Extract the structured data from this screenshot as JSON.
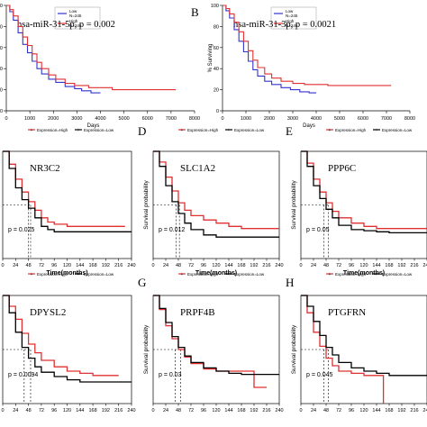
{
  "chart_data": [
    {
      "panel": "A",
      "type": "line",
      "kind": "km_top",
      "panel_letter": "",
      "gene": "hsa-miR-31-5p",
      "p_text": "p = 0.002",
      "xlabel": "Days",
      "ylabel": "",
      "xticks": [
        "0",
        "1000",
        "2000",
        "3000",
        "4000",
        "5000",
        "6000",
        "7000",
        "8000"
      ],
      "yticks": [
        "0",
        "20",
        "40",
        "60",
        "80",
        "100"
      ],
      "xlim": [
        0,
        8000
      ],
      "ylim": [
        0,
        100
      ],
      "legend": [
        {
          "name": "Low",
          "count": "N=245",
          "color": "#3333cc"
        },
        {
          "name": "High",
          "count": "N=245",
          "color": "#e03030"
        }
      ],
      "series": [
        {
          "name": "Low",
          "color": "#3333cc",
          "x": [
            0,
            150,
            300,
            500,
            700,
            900,
            1100,
            1300,
            1500,
            1800,
            2100,
            2500,
            2900,
            3200,
            3600,
            4000
          ],
          "y": [
            100,
            94,
            86,
            74,
            63,
            55,
            47,
            40,
            35,
            30,
            27,
            23,
            21,
            19,
            17,
            17
          ]
        },
        {
          "name": "High",
          "color": "#e03030",
          "x": [
            0,
            150,
            300,
            500,
            700,
            900,
            1100,
            1300,
            1500,
            1800,
            2100,
            2500,
            2900,
            3500,
            4500,
            5500,
            7200
          ],
          "y": [
            100,
            96,
            90,
            80,
            70,
            62,
            54,
            46,
            40,
            34,
            30,
            26,
            24,
            22,
            20,
            20,
            20
          ]
        }
      ]
    },
    {
      "panel": "B",
      "type": "line",
      "kind": "km_top",
      "panel_letter": "B",
      "gene": "hsa-miR-31-3p",
      "p_text": "p = 0.0021",
      "xlabel": "Days",
      "ylabel": "% Surviving",
      "xticks": [
        "0",
        "1000",
        "2000",
        "3000",
        "4000",
        "5000",
        "6000",
        "7000",
        "8000"
      ],
      "yticks": [
        "0",
        "20",
        "40",
        "60",
        "80",
        "100"
      ],
      "xlim": [
        0,
        8000
      ],
      "ylim": [
        0,
        100
      ],
      "legend": [
        {
          "name": "Low",
          "count": "N=245",
          "color": "#3333cc"
        },
        {
          "name": "High",
          "count": "N=245",
          "color": "#e03030"
        }
      ],
      "series": [
        {
          "name": "Low",
          "color": "#3333cc",
          "x": [
            0,
            150,
            300,
            500,
            700,
            900,
            1100,
            1300,
            1500,
            1800,
            2100,
            2500,
            2900,
            3300,
            3700,
            4000
          ],
          "y": [
            100,
            95,
            88,
            77,
            66,
            56,
            47,
            39,
            33,
            28,
            25,
            22,
            20,
            18,
            17,
            17
          ]
        },
        {
          "name": "High",
          "color": "#e03030",
          "x": [
            0,
            150,
            300,
            500,
            700,
            900,
            1100,
            1300,
            1500,
            1800,
            2100,
            2500,
            3000,
            3500,
            4500,
            5500,
            7200
          ],
          "y": [
            100,
            97,
            92,
            84,
            75,
            66,
            57,
            48,
            41,
            35,
            31,
            28,
            26,
            25,
            24,
            24,
            24
          ]
        }
      ]
    },
    {
      "panel": "C",
      "type": "line",
      "kind": "km_bottom",
      "panel_letter": "",
      "gene": "NR3C2",
      "p_text": "p = 0.025",
      "xlabel": "Time(months)",
      "ylabel": "",
      "xticks": [
        "0",
        "24",
        "48",
        "72",
        "96",
        "120",
        "144",
        "168",
        "192",
        "216",
        "240"
      ],
      "xlim": [
        0,
        240
      ],
      "ylim": [
        0,
        1
      ],
      "median_lines": [
        48,
        52
      ],
      "legend": [
        {
          "name": "Expression=High",
          "color": "#e03030"
        },
        {
          "name": "Expression=Low",
          "color": "#000000"
        }
      ],
      "series": [
        {
          "name": "Expression=High",
          "color": "#e03030",
          "x": [
            0,
            12,
            24,
            36,
            48,
            60,
            72,
            84,
            96,
            120,
            144,
            168,
            192,
            216,
            228
          ],
          "y": [
            1,
            0.88,
            0.74,
            0.62,
            0.53,
            0.45,
            0.38,
            0.34,
            0.32,
            0.3,
            0.3,
            0.3,
            0.3,
            0.3,
            0.3
          ]
        },
        {
          "name": "Expression=Low",
          "color": "#000000",
          "x": [
            0,
            12,
            24,
            36,
            48,
            60,
            72,
            84,
            96,
            120,
            144,
            168,
            192,
            216,
            240
          ],
          "y": [
            1,
            0.84,
            0.66,
            0.55,
            0.47,
            0.38,
            0.3,
            0.27,
            0.25,
            0.25,
            0.25,
            0.25,
            0.25,
            0.25,
            0.25
          ]
        }
      ]
    },
    {
      "panel": "D",
      "type": "line",
      "kind": "km_bottom",
      "panel_letter": "D",
      "gene": "SLC1A2",
      "p_text": "p = 0.012",
      "xlabel": "Time(months)",
      "ylabel": "Survival probability",
      "xticks": [
        "0",
        "24",
        "48",
        "72",
        "96",
        "120",
        "144",
        "168",
        "192",
        "216",
        "240"
      ],
      "xlim": [
        0,
        240
      ],
      "ylim": [
        0,
        1
      ],
      "median_lines": [
        44,
        50
      ],
      "legend": [
        {
          "name": "Expression=High",
          "color": "#e03030"
        },
        {
          "name": "Expression=Low",
          "color": "#000000"
        }
      ],
      "series": [
        {
          "name": "Expression=High",
          "color": "#e03030",
          "x": [
            0,
            12,
            24,
            36,
            48,
            60,
            72,
            96,
            120,
            144,
            168,
            192,
            216,
            240
          ],
          "y": [
            1,
            0.9,
            0.76,
            0.63,
            0.52,
            0.45,
            0.4,
            0.36,
            0.33,
            0.3,
            0.28,
            0.28,
            0.28,
            0.28
          ]
        },
        {
          "name": "Expression=Low",
          "color": "#000000",
          "x": [
            0,
            12,
            24,
            36,
            48,
            60,
            72,
            96,
            120,
            144,
            168,
            192,
            216,
            240
          ],
          "y": [
            1,
            0.86,
            0.68,
            0.53,
            0.42,
            0.33,
            0.27,
            0.22,
            0.2,
            0.2,
            0.2,
            0.2,
            0.2,
            0.2
          ]
        }
      ]
    },
    {
      "panel": "E",
      "type": "line",
      "kind": "km_bottom",
      "panel_letter": "E",
      "gene": "PPP6C",
      "p_text": "p = 0.05",
      "xlabel": "Time(months)",
      "ylabel": "Survival probability",
      "xticks": [
        "0",
        "24",
        "48",
        "72",
        "96",
        "120",
        "144",
        "168",
        "192",
        "216",
        "240"
      ],
      "xlim": [
        0,
        240
      ],
      "ylim": [
        0,
        1
      ],
      "median_lines": [
        44,
        52
      ],
      "legend": [
        {
          "name": "Expression=High",
          "color": "#e03030"
        },
        {
          "name": "Expression=Low",
          "color": "#000000"
        }
      ],
      "series": [
        {
          "name": "Expression=High",
          "color": "#e03030",
          "x": [
            0,
            12,
            24,
            36,
            48,
            60,
            72,
            96,
            120,
            144,
            168,
            192,
            216,
            240
          ],
          "y": [
            1,
            0.89,
            0.74,
            0.62,
            0.52,
            0.44,
            0.38,
            0.33,
            0.3,
            0.28,
            0.28,
            0.28,
            0.28,
            0.28
          ]
        },
        {
          "name": "Expression=Low",
          "color": "#000000",
          "x": [
            0,
            12,
            24,
            36,
            48,
            60,
            72,
            96,
            120,
            144,
            168,
            192,
            216,
            240
          ],
          "y": [
            1,
            0.86,
            0.68,
            0.56,
            0.46,
            0.38,
            0.31,
            0.27,
            0.26,
            0.25,
            0.24,
            0.24,
            0.24,
            0.24
          ]
        }
      ]
    },
    {
      "panel": "F",
      "type": "line",
      "kind": "km_bottom",
      "panel_letter": "",
      "gene": "DPYSL2",
      "p_text": "p = 0.0094",
      "xlabel": "",
      "ylabel": "",
      "xticks": [
        "0",
        "24",
        "48",
        "72",
        "96",
        "120",
        "144",
        "168",
        "192",
        "216",
        "240"
      ],
      "xlim": [
        0,
        240
      ],
      "ylim": [
        0,
        1
      ],
      "median_lines": [
        40,
        52
      ],
      "legend": [
        {
          "name": "Expression=High",
          "color": "#e03030"
        },
        {
          "name": "Expression=Low",
          "color": "#000000"
        }
      ],
      "series": [
        {
          "name": "Expression=High",
          "color": "#e03030",
          "x": [
            0,
            12,
            24,
            36,
            48,
            60,
            72,
            96,
            120,
            144,
            168,
            192,
            216
          ],
          "y": [
            1,
            0.9,
            0.78,
            0.65,
            0.55,
            0.47,
            0.4,
            0.34,
            0.3,
            0.28,
            0.26,
            0.26,
            0.26
          ]
        },
        {
          "name": "Expression=Low",
          "color": "#000000",
          "x": [
            0,
            12,
            24,
            36,
            48,
            60,
            72,
            96,
            120,
            144,
            168,
            192,
            216,
            240
          ],
          "y": [
            1,
            0.84,
            0.66,
            0.52,
            0.42,
            0.34,
            0.29,
            0.25,
            0.22,
            0.2,
            0.2,
            0.2,
            0.2,
            0.2
          ]
        }
      ]
    },
    {
      "panel": "G",
      "type": "line",
      "kind": "km_bottom",
      "panel_letter": "G",
      "gene": "PRPF4B",
      "p_text": "p = 0.03",
      "xlabel": "",
      "ylabel": "Survival probability",
      "xticks": [
        "0",
        "24",
        "48",
        "72",
        "96",
        "120",
        "144",
        "168",
        "192",
        "216",
        "240"
      ],
      "xlim": [
        0,
        240
      ],
      "ylim": [
        0,
        1
      ],
      "median_lines": [
        42,
        52
      ],
      "legend": [
        {
          "name": "Expression=High",
          "color": "#e03030"
        },
        {
          "name": "Expression=Low",
          "color": "#000000"
        }
      ],
      "series": [
        {
          "name": "Expression=High",
          "color": "#e03030",
          "x": [
            0,
            12,
            24,
            36,
            48,
            60,
            72,
            96,
            120,
            144,
            168,
            192,
            216
          ],
          "y": [
            1,
            0.87,
            0.72,
            0.6,
            0.5,
            0.43,
            0.37,
            0.32,
            0.3,
            0.3,
            0.3,
            0.15,
            0.15
          ]
        },
        {
          "name": "Expression=Low",
          "color": "#000000",
          "x": [
            0,
            12,
            24,
            36,
            48,
            60,
            72,
            96,
            120,
            144,
            168,
            192,
            216,
            240
          ],
          "y": [
            1,
            0.88,
            0.75,
            0.62,
            0.52,
            0.44,
            0.38,
            0.33,
            0.3,
            0.28,
            0.27,
            0.27,
            0.27,
            0.27
          ]
        }
      ]
    },
    {
      "panel": "H",
      "type": "line",
      "kind": "km_bottom",
      "panel_letter": "H",
      "gene": "PTGFRN",
      "p_text": "p = 0.045",
      "xlabel": "",
      "ylabel": "Survival probability",
      "xticks": [
        "0",
        "24",
        "48",
        "72",
        "96",
        "120",
        "144",
        "168",
        "192",
        "216",
        "240"
      ],
      "xlim": [
        0,
        240
      ],
      "ylim": [
        0,
        1
      ],
      "median_lines": [
        44,
        52
      ],
      "legend": [
        {
          "name": "Expression=High",
          "color": "#e03030"
        },
        {
          "name": "Expression=Low",
          "color": "#000000"
        }
      ],
      "series": [
        {
          "name": "Expression=High",
          "color": "#e03030",
          "x": [
            0,
            12,
            24,
            36,
            48,
            60,
            72,
            96,
            120,
            144,
            156,
            157
          ],
          "y": [
            1,
            0.84,
            0.66,
            0.53,
            0.42,
            0.35,
            0.3,
            0.28,
            0.26,
            0.26,
            0.26,
            0
          ]
        },
        {
          "name": "Expression=Low",
          "color": "#000000",
          "x": [
            0,
            12,
            24,
            36,
            48,
            60,
            72,
            96,
            120,
            144,
            168,
            192,
            216,
            240
          ],
          "y": [
            1,
            0.9,
            0.76,
            0.63,
            0.52,
            0.45,
            0.38,
            0.33,
            0.3,
            0.28,
            0.26,
            0.26,
            0.26,
            0.26
          ]
        }
      ]
    }
  ]
}
